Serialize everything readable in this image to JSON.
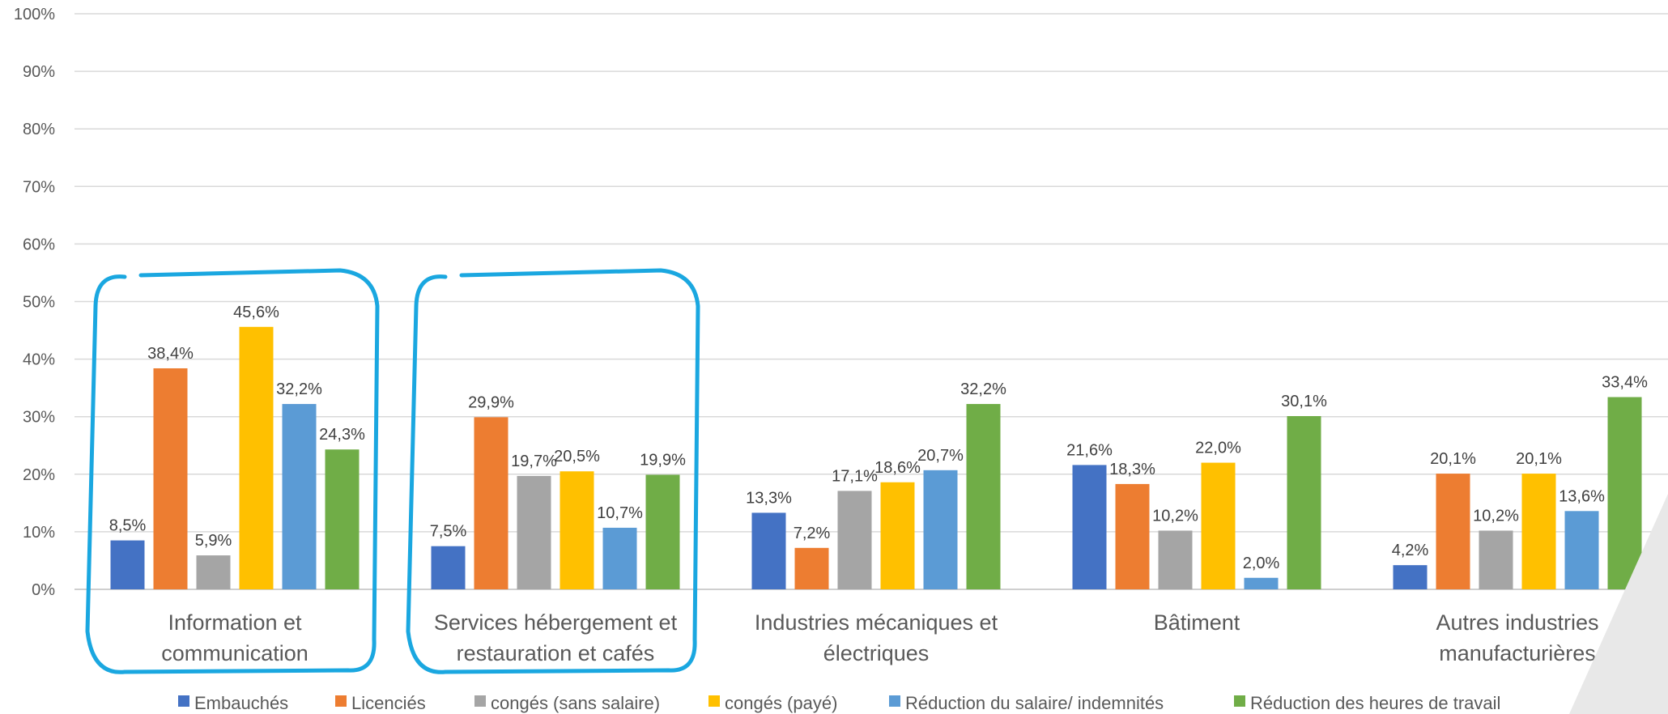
{
  "chart_data": {
    "type": "bar",
    "categories": [
      "Information et\ncommunication",
      "Services hébergement et\nrestauration et cafés",
      "Industries mécaniques et\nélectriques",
      "Bâtiment",
      "Autres industries\nmanufacturières"
    ],
    "series": [
      {
        "name": "Embauchés",
        "color": "#4472C4",
        "values": [
          8.5,
          7.5,
          13.3,
          21.6,
          4.2
        ],
        "labels": [
          "8,5%",
          "7,5%",
          "13,3%",
          "21,6%",
          "4,2%"
        ]
      },
      {
        "name": "Licenciés",
        "color": "#ED7D31",
        "values": [
          38.4,
          29.9,
          7.2,
          18.3,
          20.1
        ],
        "labels": [
          "38,4%",
          "29,9%",
          "7,2%",
          "18,3%",
          "20,1%"
        ]
      },
      {
        "name": "congés (sans salaire)",
        "color": "#A5A5A5",
        "values": [
          5.9,
          19.7,
          17.1,
          10.2,
          10.2
        ],
        "labels": [
          "5,9%",
          "19,7%",
          "17,1%",
          "10,2%",
          "10,2%"
        ]
      },
      {
        "name": "congés (payé)",
        "color": "#FFC000",
        "values": [
          45.6,
          20.5,
          18.6,
          22.0,
          20.1
        ],
        "labels": [
          "45,6%",
          "20,5%",
          "18,6%",
          "22,0%",
          "20,1%"
        ]
      },
      {
        "name": "Réduction du salaire/ indemnités",
        "color": "#5B9BD5",
        "values": [
          32.2,
          10.7,
          20.7,
          2.0,
          13.6
        ],
        "labels": [
          "32,2%",
          "10,7%",
          "20,7%",
          "2,0%",
          "13,6%"
        ]
      },
      {
        "name": "Réduction des heures de travail",
        "color": "#70AD47",
        "values": [
          24.3,
          19.9,
          32.2,
          30.1,
          33.4
        ],
        "labels": [
          "24,3%",
          "19,9%",
          "32,2%",
          "30,1%",
          "33,4%"
        ]
      }
    ],
    "ylim": [
      0,
      100
    ],
    "yticks": [
      "0%",
      "10%",
      "20%",
      "30%",
      "40%",
      "50%",
      "60%",
      "70%",
      "80%",
      "90%",
      "100%"
    ],
    "grid": true,
    "legend_position": "bottom",
    "highlighted_categories": [
      0,
      1
    ],
    "highlight_color": "#1AA7E0"
  }
}
